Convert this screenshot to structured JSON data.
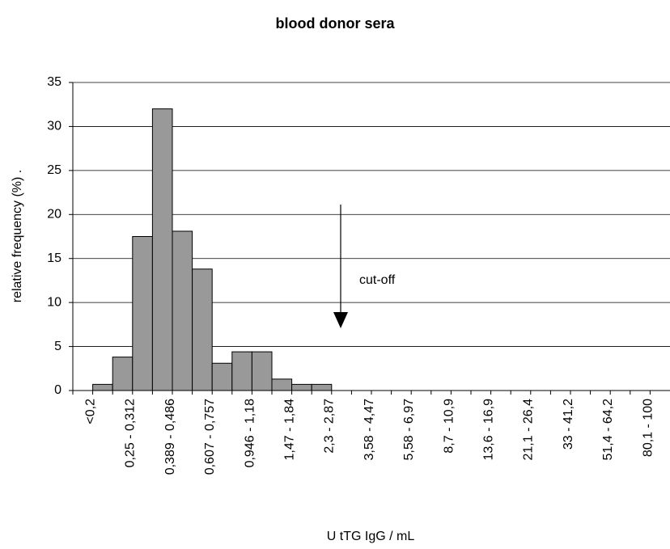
{
  "chart_data": {
    "type": "bar",
    "title": "blood donor sera",
    "x_label": "U  tTG IgG / mL",
    "y_label": "relative frequency (%)      .",
    "annotation": "cut-off",
    "categories": [
      "<0,2",
      null,
      "0,25 - 0,312",
      null,
      "0,389 - 0,486",
      null,
      "0,607 - 0,757",
      null,
      "0,946 - 1,18",
      null,
      "1,47 - 1,84",
      null,
      "2,3 - 2,87",
      null,
      "3,58 - 4,47",
      null,
      "5,58 - 6,97",
      null,
      "8,7 - 10,9",
      null,
      "13,6 - 16,9",
      null,
      "21,1 - 26,4",
      null,
      "33 - 41,2",
      null,
      "51,4 - 64,2",
      null,
      "80,1 - 100",
      null
    ],
    "values": [
      0,
      0.7,
      3.8,
      17.5,
      32,
      18.1,
      13.8,
      3.1,
      4.4,
      4.4,
      1.3,
      0.7,
      0.7,
      0,
      0,
      0,
      0,
      0,
      0,
      0,
      0,
      0,
      0,
      0,
      0,
      0,
      0,
      0,
      0,
      0
    ],
    "color": "#999999",
    "ylim": [
      0,
      35
    ],
    "yticks": [
      0,
      5,
      10,
      15,
      20,
      25,
      30,
      35
    ],
    "grid": true
  }
}
